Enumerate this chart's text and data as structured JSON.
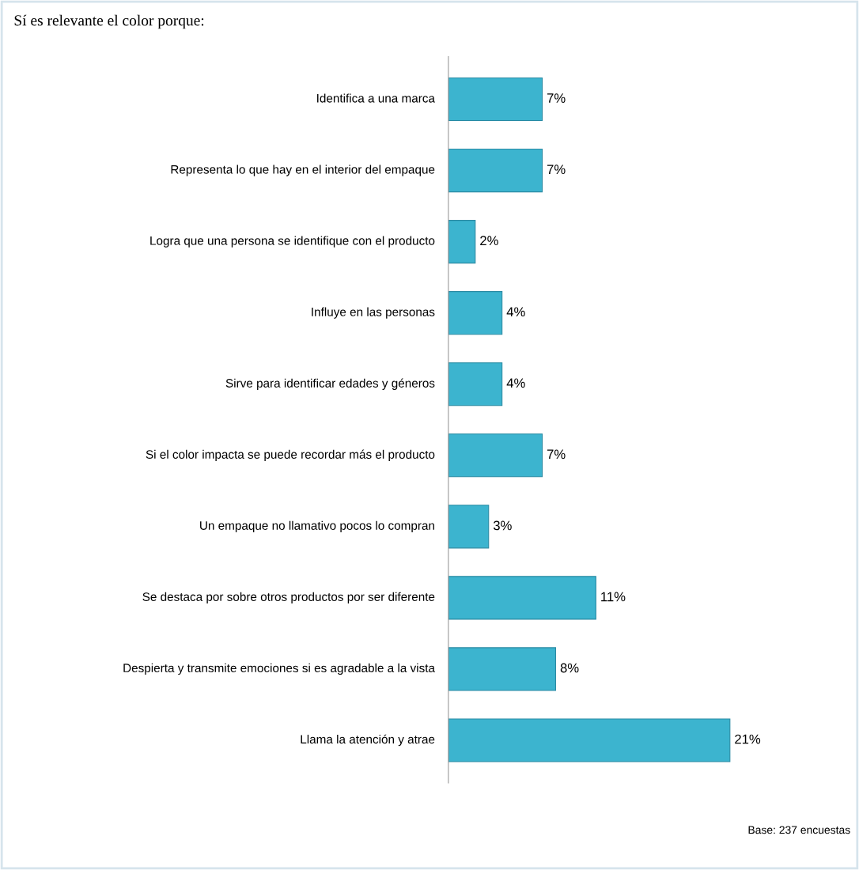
{
  "chart_data": {
    "type": "bar",
    "orientation": "horizontal",
    "title": "Sí es relevante el color porque:",
    "categories": [
      "Identifica a una marca",
      "Representa lo que hay en el interior del empaque",
      "Logra que una persona se identifique con el producto",
      "Influye en las personas",
      "Sirve para identificar edades y géneros",
      "Si el color impacta se puede recordar más el producto",
      "Un empaque no llamativo pocos lo compran",
      "Se destaca por sobre otros productos por ser diferente",
      "Despierta y transmite emociones si es agradable a la vista",
      "Llama la atención y atrae"
    ],
    "values": [
      7,
      7,
      2,
      4,
      4,
      7,
      3,
      11,
      8,
      21
    ],
    "value_labels": [
      "7%",
      "7%",
      "2%",
      "4%",
      "4%",
      "7%",
      "3%",
      "11%",
      "8%",
      "21%"
    ],
    "color": "#3cb4cf",
    "annotations": [
      "Base: 237 encuestas"
    ]
  }
}
